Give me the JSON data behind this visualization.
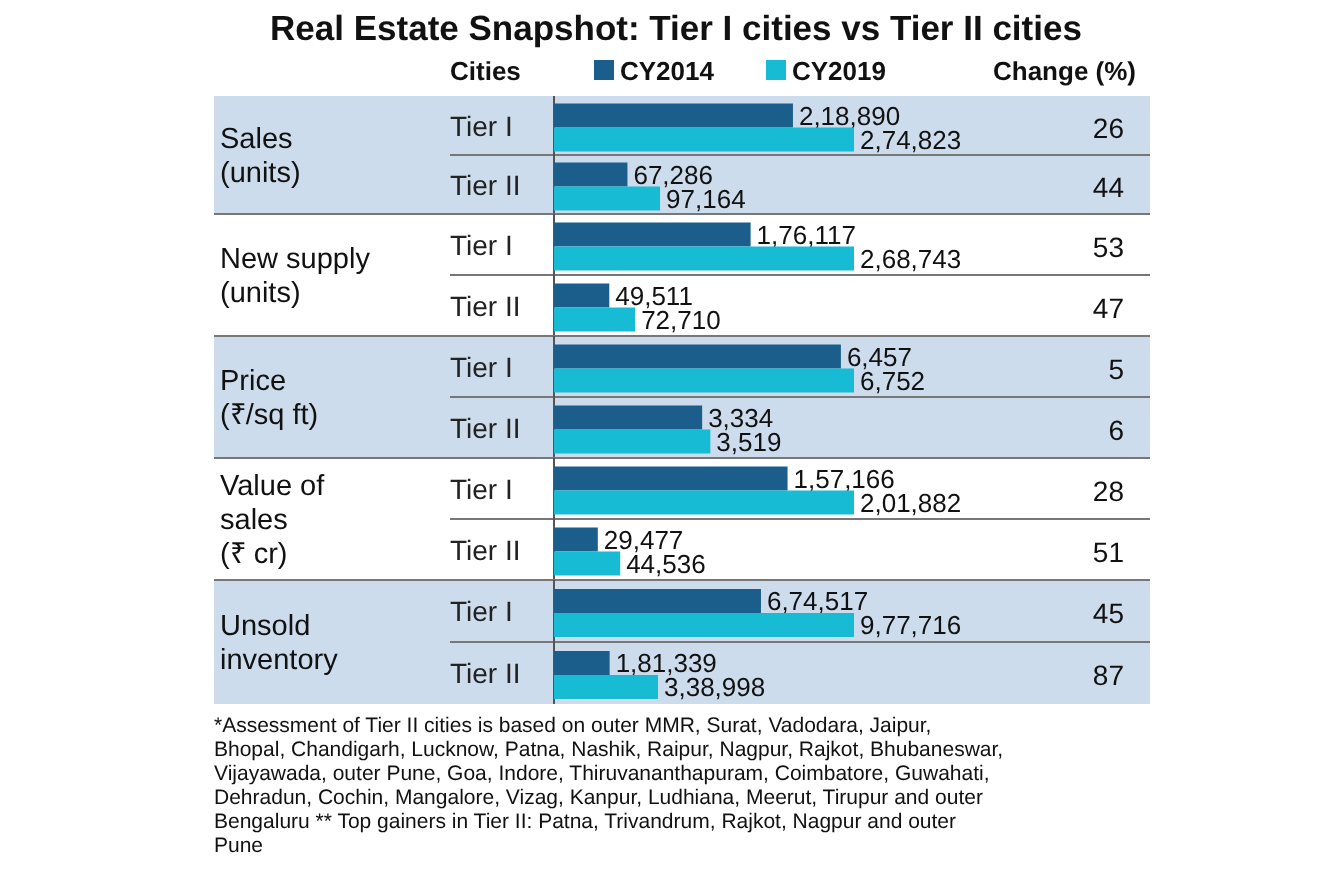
{
  "chart_data": [
    {
      "type": "bar",
      "orientation": "horizontal",
      "title": "Real Estate Snapshot: Tier I cities vs Tier II cities",
      "ylabel": "Sales (units)",
      "categories": [
        "Tier I",
        "Tier II"
      ],
      "legend": "top",
      "annotations": [
        "Cities",
        "Change (%)",
        "26",
        "44"
      ],
      "series": [
        {
          "name": "CY2014",
          "color": "#1b5e8c",
          "values": [
            218890,
            67286
          ],
          "value_labels": [
            "2,18,890",
            "67,286"
          ]
        },
        {
          "name": "CY2019",
          "color": "#17bcd4",
          "values": [
            274823,
            97164
          ],
          "value_labels": [
            "2,74,823",
            "97,164"
          ]
        }
      ]
    },
    {
      "type": "bar",
      "orientation": "horizontal",
      "ylabel": "New supply (units)",
      "categories": [
        "Tier I",
        "Tier II"
      ],
      "annotations": [
        "53",
        "47"
      ],
      "series": [
        {
          "color": "#1b5e8c",
          "values": [
            176117,
            49511
          ],
          "value_labels": [
            "1,76,117",
            "49,511"
          ]
        },
        {
          "color": "#17bcd4",
          "values": [
            268743,
            72710
          ],
          "value_labels": [
            "2,68,743",
            "72,710"
          ]
        }
      ]
    },
    {
      "type": "bar",
      "orientation": "horizontal",
      "ylabel": "Price (₹/sq ft)",
      "categories": [
        "Tier I",
        "Tier II"
      ],
      "annotations": [
        "5",
        "6"
      ],
      "series": [
        {
          "color": "#1b5e8c",
          "values": [
            6457,
            3334
          ],
          "value_labels": [
            "6,457",
            "3,334"
          ]
        },
        {
          "color": "#17bcd4",
          "values": [
            6752,
            3519
          ],
          "value_labels": [
            "6,752",
            "3,519"
          ]
        }
      ]
    },
    {
      "type": "bar",
      "orientation": "horizontal",
      "ylabel": "Value of sales (₹ cr)",
      "categories": [
        "Tier I",
        "Tier II"
      ],
      "annotations": [
        "28",
        "51"
      ],
      "series": [
        {
          "color": "#1b5e8c",
          "values": [
            157166,
            29477
          ],
          "value_labels": [
            "1,57,166",
            "29,477"
          ]
        },
        {
          "color": "#17bcd4",
          "values": [
            201882,
            44536
          ],
          "value_labels": [
            "2,01,882",
            "44,536"
          ]
        }
      ]
    },
    {
      "type": "bar",
      "orientation": "horizontal",
      "ylabel": "Unsold inventory",
      "categories": [
        "Tier I",
        "Tier II"
      ],
      "annotations": [
        "45",
        "87",
        "*Assessment of Tier II cities is based on outer MMR, Surat, Vadodara, Jaipur, Bhopal, Chandigarh, Lucknow, Patna, Nashik, Raipur, Nagpur, Rajkot, Bhubaneswar, Vijayawada, outer Pune, Goa, Indore, Thiruvananthapuram, Coimbatore, Guwahati, Dehradun, Cochin, Mangalore, Vizag, Kanpur, Ludhiana, Meerut, Tirupur and outer Bengaluru ** Top gainers in Tier II: Patna, Trivandrum, Rajkot, Nagpur and outer Pune"
      ],
      "series": [
        {
          "color": "#1b5e8c",
          "values": [
            674517,
            181339
          ],
          "value_labels": [
            "6,74,517",
            "1,81,339"
          ]
        },
        {
          "color": "#17bcd4",
          "values": [
            977716,
            338998
          ],
          "value_labels": [
            "9,77,716",
            "3,38,998"
          ]
        }
      ]
    }
  ]
}
